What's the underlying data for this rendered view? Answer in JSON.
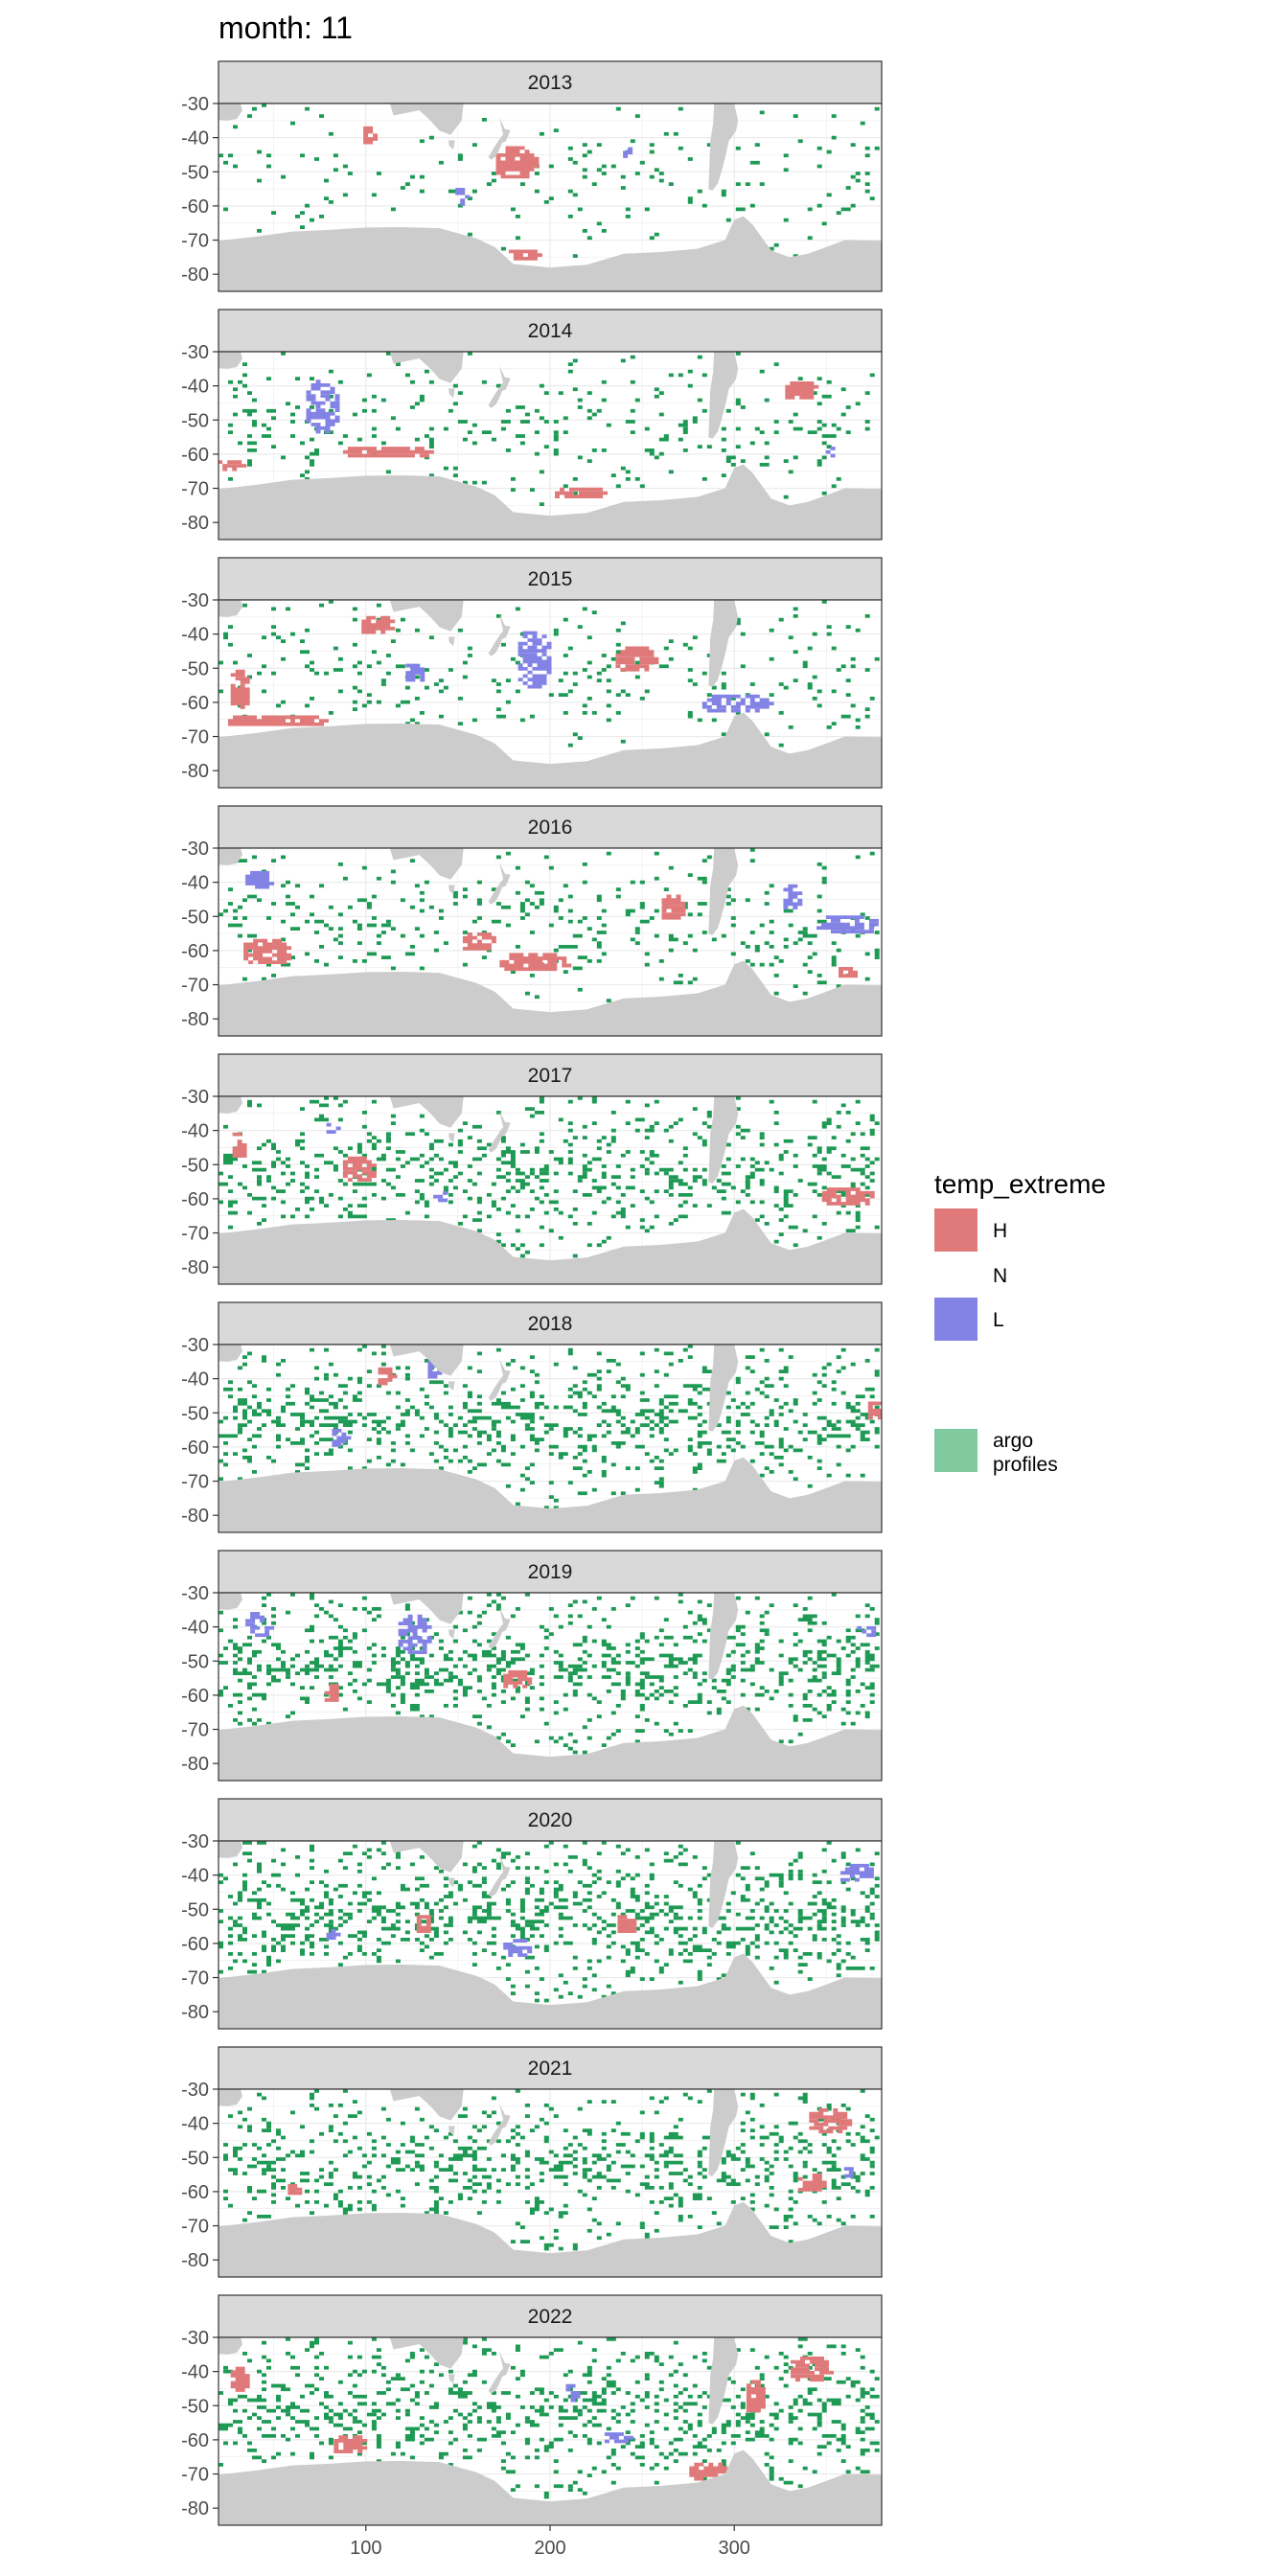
{
  "chart_data": {
    "type": "heatmap",
    "title": "month: 11",
    "xlabel": "",
    "ylabel": "",
    "xlim": [
      20,
      380
    ],
    "ylim": [
      -85,
      -30
    ],
    "x_ticks": [
      100,
      200,
      300
    ],
    "y_ticks": [
      -30,
      -40,
      -50,
      -60,
      -70,
      -80
    ],
    "grid": true,
    "facets": [
      "2013",
      "2014",
      "2015",
      "2016",
      "2017",
      "2018",
      "2019",
      "2020",
      "2021",
      "2022"
    ],
    "legend": {
      "title": "temp_extreme",
      "position": "right",
      "entries": [
        {
          "label": "H",
          "color": "#E07A7A"
        },
        {
          "label": "N",
          "color": ""
        },
        {
          "label": "L",
          "color": "#8383E6"
        },
        {
          "label": "argo profiles",
          "color": "#80C89E"
        }
      ]
    },
    "colors": {
      "H": "#E07A7A",
      "L": "#8383E6",
      "argo": "#1E9A55",
      "land": "#CCCCCC",
      "strip": "#D9D9D9"
    },
    "panels": [
      {
        "year": "2013",
        "density": 0.05,
        "H": [
          [
            180,
            -48,
            12,
            5
          ],
          [
            185,
            -75,
            10,
            2
          ],
          [
            100,
            -40,
            4,
            3
          ]
        ],
        "L": [
          [
            150,
            -58,
            4,
            3
          ],
          [
            240,
            -45,
            3,
            2
          ]
        ]
      },
      {
        "year": "2014",
        "density": 0.08,
        "H": [
          [
            25,
            -64,
            8,
            2
          ],
          [
            110,
            -60,
            25,
            2
          ],
          [
            335,
            -42,
            10,
            3
          ],
          [
            215,
            -72,
            15,
            2
          ]
        ],
        "L": [
          [
            75,
            -47,
            10,
            8
          ],
          [
            350,
            -60,
            3,
            2
          ]
        ]
      },
      {
        "year": "2015",
        "density": 0.07,
        "H": [
          [
            245,
            -48,
            12,
            4
          ],
          [
            50,
            -66,
            30,
            2
          ],
          [
            30,
            -57,
            6,
            6
          ],
          [
            105,
            -38,
            10,
            3
          ]
        ],
        "L": [
          [
            190,
            -48,
            10,
            9
          ],
          [
            300,
            -61,
            20,
            3
          ],
          [
            125,
            -52,
            6,
            3
          ]
        ],
        "Lfill": 0.75
      },
      {
        "year": "2016",
        "density": 0.1,
        "H": [
          [
            45,
            -61,
            14,
            4
          ],
          [
            190,
            -64,
            20,
            3
          ],
          [
            265,
            -48,
            7,
            4
          ],
          [
            360,
            -67,
            6,
            2
          ],
          [
            160,
            -58,
            10,
            3
          ]
        ],
        "L": [
          [
            360,
            -53,
            18,
            3
          ],
          [
            40,
            -40,
            8,
            3
          ],
          [
            330,
            -45,
            6,
            4
          ]
        ],
        "Lfill": 0.75
      },
      {
        "year": "2017",
        "density": 0.18,
        "H": [
          [
            95,
            -52,
            10,
            4
          ],
          [
            360,
            -60,
            15,
            3
          ],
          [
            30,
            -45,
            5,
            4
          ]
        ],
        "L": [
          [
            140,
            -60,
            6,
            2
          ],
          [
            80,
            -40,
            4,
            2
          ]
        ]
      },
      {
        "year": "2018",
        "density": 0.2,
        "H": [
          [
            110,
            -40,
            6,
            3
          ],
          [
            375,
            -50,
            5,
            3
          ]
        ],
        "L": [
          [
            85,
            -58,
            6,
            3
          ],
          [
            135,
            -38,
            4,
            3
          ]
        ]
      },
      {
        "year": "2019",
        "density": 0.22,
        "H": [
          [
            180,
            -56,
            8,
            3
          ],
          [
            80,
            -60,
            5,
            3
          ]
        ],
        "L": [
          [
            125,
            -43,
            10,
            6
          ],
          [
            40,
            -40,
            8,
            4
          ],
          [
            370,
            -42,
            6,
            2
          ]
        ]
      },
      {
        "year": "2020",
        "density": 0.22,
        "H": [
          [
            240,
            -55,
            6,
            3
          ],
          [
            130,
            -55,
            5,
            3
          ]
        ],
        "L": [
          [
            180,
            -62,
            8,
            3
          ],
          [
            365,
            -40,
            10,
            3
          ],
          [
            80,
            -58,
            4,
            2
          ]
        ]
      },
      {
        "year": "2021",
        "density": 0.2,
        "H": [
          [
            350,
            -40,
            12,
            4
          ],
          [
            340,
            -58,
            8,
            3
          ],
          [
            60,
            -60,
            5,
            2
          ]
        ],
        "L": [
          [
            360,
            -55,
            3,
            2
          ]
        ]
      },
      {
        "year": "2022",
        "density": 0.2,
        "H": [
          [
            285,
            -70,
            12,
            3
          ],
          [
            340,
            -40,
            12,
            4
          ],
          [
            310,
            -48,
            6,
            5
          ],
          [
            30,
            -43,
            6,
            4
          ],
          [
            90,
            -62,
            10,
            3
          ]
        ],
        "L": [
          [
            235,
            -60,
            8,
            2
          ],
          [
            210,
            -47,
            4,
            3
          ]
        ]
      }
    ]
  }
}
